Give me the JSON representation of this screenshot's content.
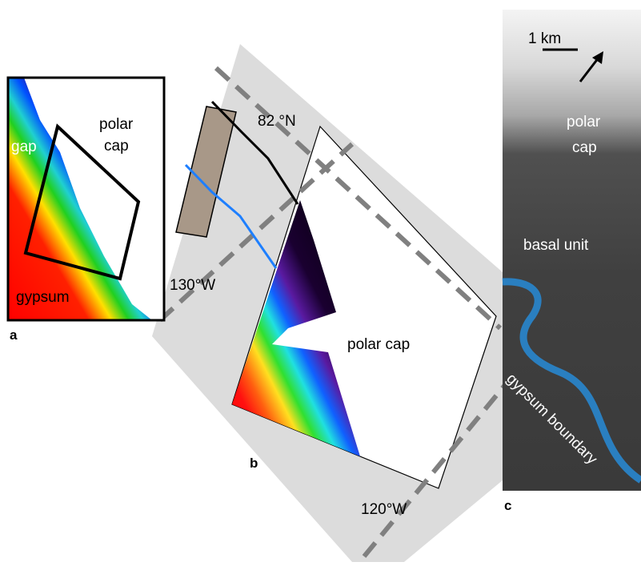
{
  "panel_a": {
    "label": "a",
    "texts": {
      "polar_cap": [
        "polar",
        "cap"
      ],
      "gap": "gap",
      "gypsum": "gypsum"
    }
  },
  "panel_b": {
    "label": "b",
    "latitude": "82 °N",
    "lon_left": "130°W",
    "lon_right": "120°W",
    "polar_cap": "polar cap"
  },
  "panel_c": {
    "label": "c",
    "scale": "1 km",
    "polar_cap": [
      "polar",
      "cap"
    ],
    "basal_unit": "basal unit",
    "boundary": "gypsum boundary"
  }
}
